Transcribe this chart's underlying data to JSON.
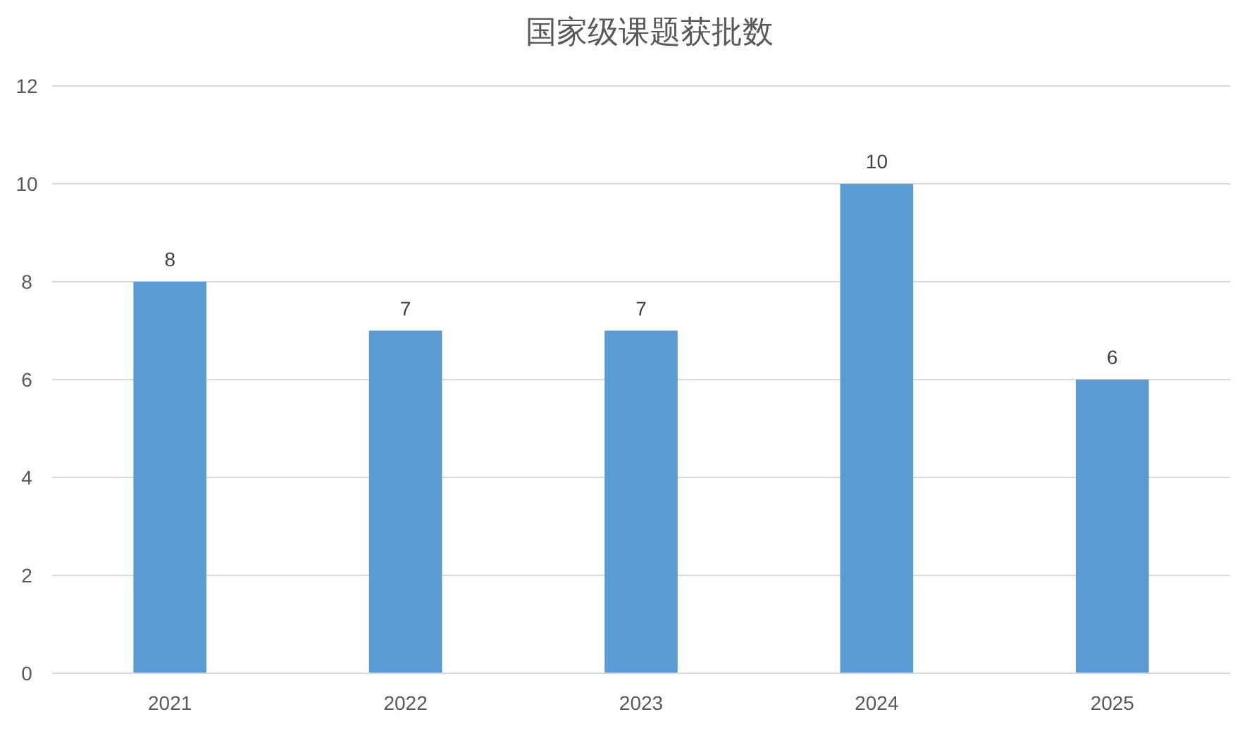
{
  "chart_data": {
    "type": "bar",
    "title": "国家级课题获批数",
    "categories": [
      "2021",
      "2022",
      "2023",
      "2024",
      "2025"
    ],
    "values": [
      8,
      7,
      7,
      10,
      6
    ],
    "color": "#5b9bd5",
    "ylim": [
      0,
      12
    ],
    "yticks": [
      0,
      2,
      4,
      6,
      8,
      10,
      12
    ],
    "grid": "y",
    "data_labels": true
  }
}
